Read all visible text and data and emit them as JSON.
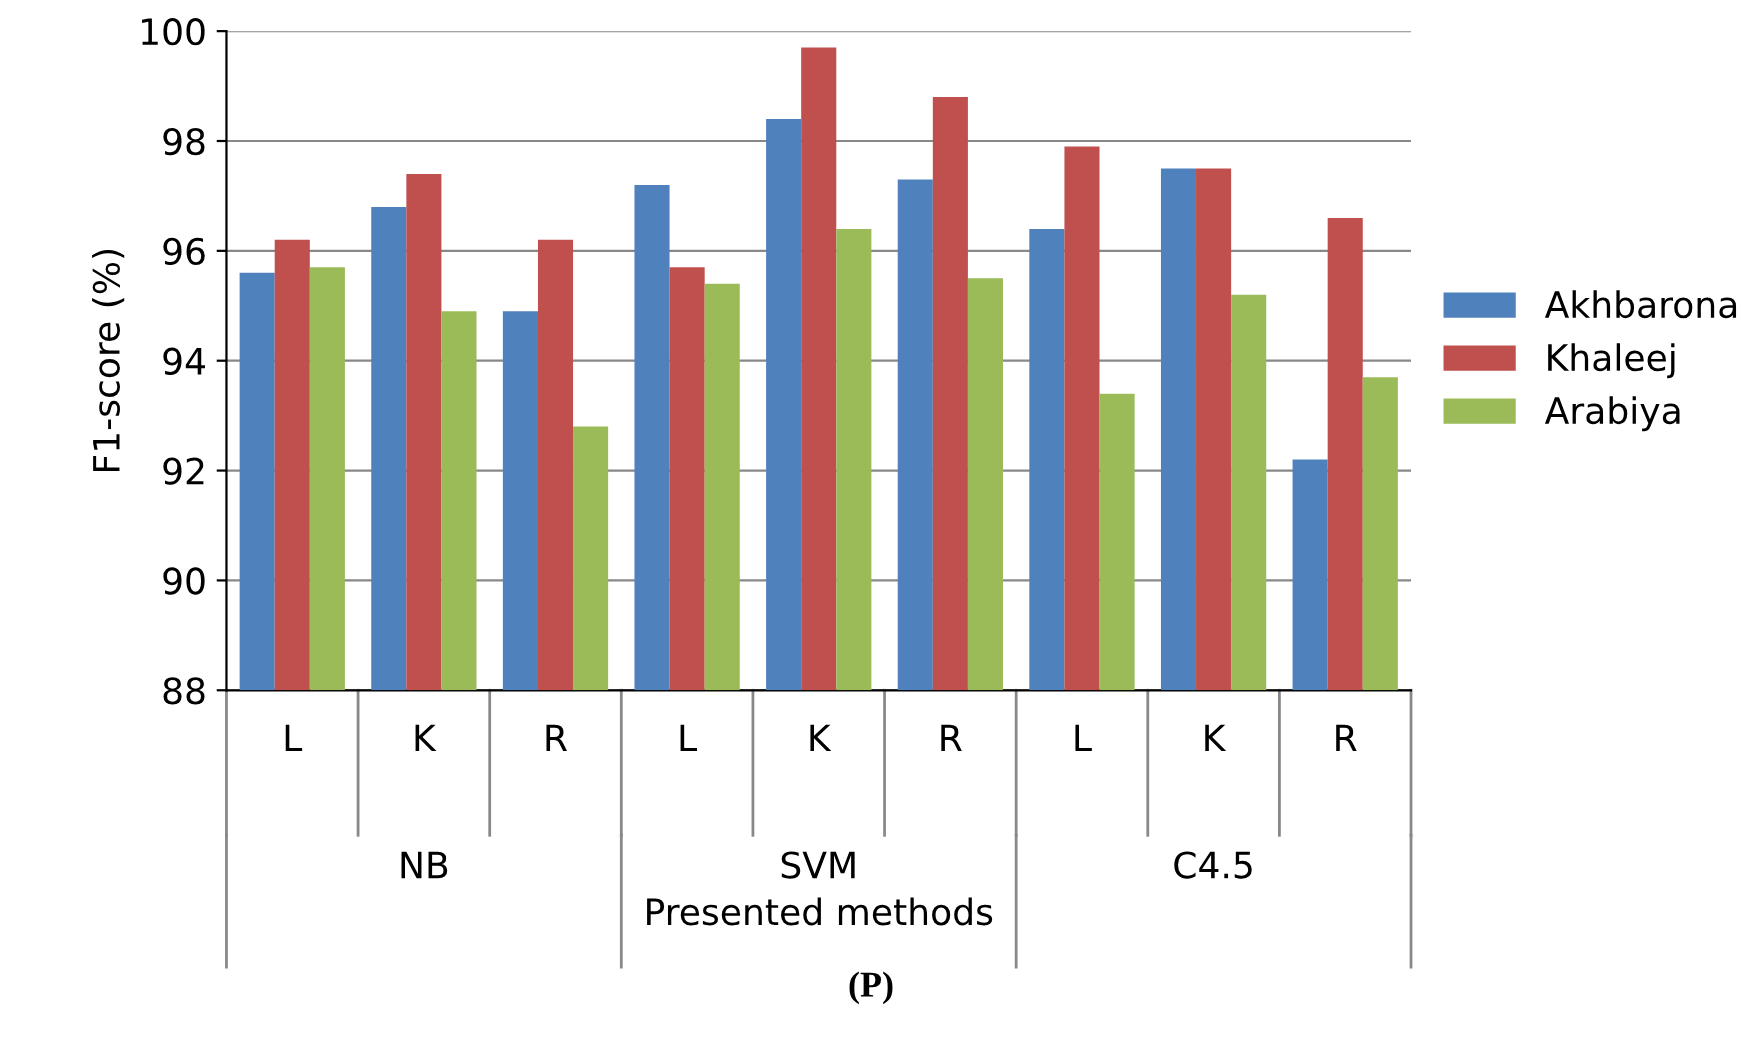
{
  "chart_data": {
    "type": "bar",
    "xlabel": "Presented methods",
    "ylabel": "F1-score (%)",
    "categories": [
      "L",
      "K",
      "R",
      "L",
      "K",
      "R",
      "L",
      "K",
      "R"
    ],
    "series": [
      {
        "name": "Akhbarona",
        "color": "#4f81bd",
        "values": [
          95.6,
          96.8,
          94.9,
          97.2,
          98.4,
          97.3,
          96.4,
          97.5,
          92.2
        ]
      },
      {
        "name": "Khaleej",
        "color": "#c0504d",
        "values": [
          96.2,
          97.4,
          96.2,
          95.7,
          99.7,
          98.8,
          97.9,
          97.5,
          96.6
        ]
      },
      {
        "name": "Arabiya",
        "color": "#9bbb59",
        "values": [
          95.7,
          94.9,
          92.8,
          95.4,
          96.4,
          95.5,
          93.4,
          95.2,
          93.7
        ]
      }
    ],
    "ylim": [
      88,
      100
    ],
    "yticks": [
      88,
      90,
      92,
      94,
      96,
      98,
      100
    ],
    "grid": "y",
    "legend": "right",
    "annotations": [
      "NB",
      "SVM",
      "C4.5",
      "(P)"
    ]
  }
}
